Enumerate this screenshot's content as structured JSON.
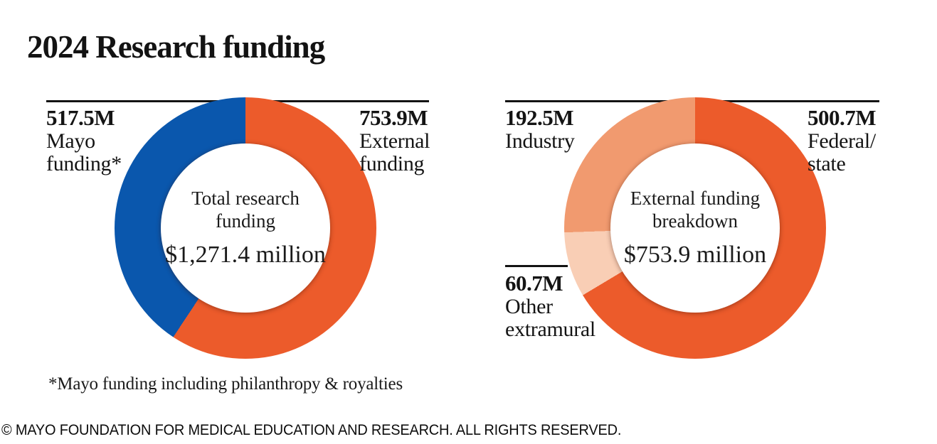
{
  "title": "2024 Research funding",
  "footnote": "*Mayo funding including philanthropy & royalties",
  "copyright": "© MAYO FOUNDATION FOR MEDICAL EDUCATION AND RESEARCH. ALL RIGHTS RESERVED.",
  "chart_data": [
    {
      "type": "pie",
      "variant": "donut",
      "title": "Total research funding",
      "center_title": "Total research\nfunding",
      "center_value": "$1,271.4 million",
      "total_value_millions": 1271.4,
      "start_angle_deg": 0,
      "direction": "clockwise",
      "segments": [
        {
          "label": "External funding",
          "value": 753.9,
          "callout_value": "753.9M",
          "callout_label": "External\nfunding",
          "color": "#EC5B2B"
        },
        {
          "label": "Mayo funding*",
          "value": 517.5,
          "callout_value": "517.5M",
          "callout_label": "Mayo\nfunding*",
          "color": "#0A57AD"
        }
      ]
    },
    {
      "type": "pie",
      "variant": "donut",
      "title": "External funding breakdown",
      "center_title": "External funding\nbreakdown",
      "center_value": "$753.9 million",
      "total_value_millions": 753.9,
      "start_angle_deg": 0,
      "direction": "clockwise",
      "segments": [
        {
          "label": "Federal/state",
          "value": 500.7,
          "callout_value": "500.7M",
          "callout_label": "Federal/\nstate",
          "color": "#EC5B2B"
        },
        {
          "label": "Other extramural",
          "value": 60.7,
          "callout_value": "60.7M",
          "callout_label": "Other\nextramural",
          "color": "#F9CEB5"
        },
        {
          "label": "Industry",
          "value": 192.5,
          "callout_value": "192.5M",
          "callout_label": "Industry",
          "color": "#F19A6F"
        }
      ]
    }
  ]
}
